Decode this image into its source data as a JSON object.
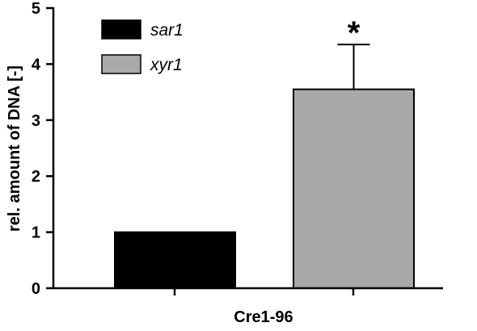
{
  "chart_data": {
    "type": "bar",
    "xlabel": "Cre1-96",
    "ylabel": "rel. amount of DNA [-]",
    "ylim": [
      0,
      5
    ],
    "yticks": [
      0,
      1,
      2,
      3,
      4,
      5
    ],
    "grid": false,
    "legend_position": "top-left",
    "series": [
      {
        "name": "sar1",
        "value": 1.0,
        "error": null,
        "color": "#000000"
      },
      {
        "name": "xyr1",
        "value": 3.55,
        "error": 0.8,
        "color": "#a9a9a9",
        "annotation": "*"
      }
    ]
  }
}
